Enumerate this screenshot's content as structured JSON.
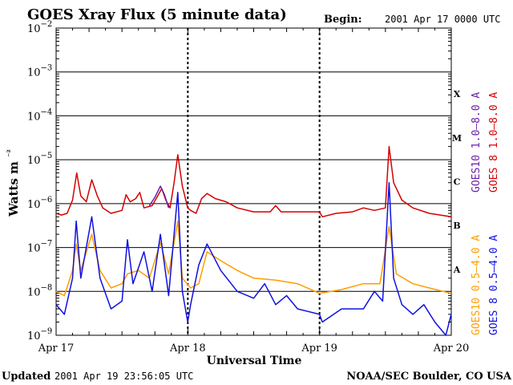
{
  "header": {
    "title": "GOES Xray Flux (5 minute data)",
    "begin_label": "Begin:",
    "begin_value": "2001 Apr 17 0000 UTC"
  },
  "footer": {
    "updated_label": "Updated",
    "updated_value": "2001 Apr 19 23:56:05 UTC",
    "credit": "NOAA/SEC Boulder, CO USA"
  },
  "colors": {
    "goes8_long": "#d40000",
    "goes10_long": "#6a1fa8",
    "goes8_short": "#1010e0",
    "goes10_short": "#ff9e00"
  },
  "chart_data": {
    "type": "line",
    "title": "GOES Xray Flux (5 minute data)",
    "xlabel": "Universal Time",
    "ylabel": "Watts m⁻²",
    "y_scale": "log",
    "ylim": [
      1e-09,
      0.01
    ],
    "y_ticks": [
      {
        "value": 1e-09,
        "base": "10",
        "exp": "−9"
      },
      {
        "value": 1e-08,
        "base": "10",
        "exp": "−8"
      },
      {
        "value": 1e-07,
        "base": "10",
        "exp": "−7"
      },
      {
        "value": 1e-06,
        "base": "10",
        "exp": "−6"
      },
      {
        "value": 1e-05,
        "base": "10",
        "exp": "−5"
      },
      {
        "value": 0.0001,
        "base": "10",
        "exp": "−4"
      },
      {
        "value": 0.001,
        "base": "10",
        "exp": "−3"
      },
      {
        "value": 0.01,
        "base": "10",
        "exp": "−2"
      }
    ],
    "xlim": [
      "2001-04-17T00:00",
      "2001-04-20T00:00"
    ],
    "x_ticks": [
      {
        "value": "2001-04-17T00:00",
        "label": "Apr 17"
      },
      {
        "value": "2001-04-18T00:00",
        "label": "Apr 18"
      },
      {
        "value": "2001-04-19T00:00",
        "label": "Apr 19"
      },
      {
        "value": "2001-04-20T00:00",
        "label": "Apr 20"
      }
    ],
    "grid": true,
    "flare_classes": [
      {
        "label": "A",
        "range": [
          1e-08,
          1e-07
        ]
      },
      {
        "label": "B",
        "range": [
          1e-07,
          1e-06
        ]
      },
      {
        "label": "C",
        "range": [
          1e-06,
          1e-05
        ]
      },
      {
        "label": "M",
        "range": [
          1e-05,
          0.0001
        ]
      },
      {
        "label": "X",
        "range": [
          0.0001,
          0.001
        ]
      }
    ],
    "series": [
      {
        "name": "GOES 8 1.0–8.0 A",
        "color": "#d40000",
        "points": [
          [
            "2001-04-17T00:00",
            6e-07
          ],
          [
            "2001-04-17T01:00",
            5.5e-07
          ],
          [
            "2001-04-17T02:00",
            6e-07
          ],
          [
            "2001-04-17T03:00",
            1.2e-06
          ],
          [
            "2001-04-17T03:45",
            5e-06
          ],
          [
            "2001-04-17T04:30",
            1.5e-06
          ],
          [
            "2001-04-17T05:30",
            1.1e-06
          ],
          [
            "2001-04-17T06:30",
            3.5e-06
          ],
          [
            "2001-04-17T07:30",
            1.5e-06
          ],
          [
            "2001-04-17T08:30",
            8e-07
          ],
          [
            "2001-04-17T10:00",
            6e-07
          ],
          [
            "2001-04-17T12:00",
            7e-07
          ],
          [
            "2001-04-17T12:45",
            1.6e-06
          ],
          [
            "2001-04-17T13:30",
            1.1e-06
          ],
          [
            "2001-04-17T14:30",
            1.3e-06
          ],
          [
            "2001-04-17T15:15",
            1.8e-06
          ],
          [
            "2001-04-17T16:00",
            8e-07
          ],
          [
            "2001-04-17T17:30",
            9e-07
          ],
          [
            "2001-04-17T18:30",
            1.5e-06
          ],
          [
            "2001-04-17T19:15",
            2.2e-06
          ],
          [
            "2001-04-17T20:00",
            1.2e-06
          ],
          [
            "2001-04-17T20:45",
            8e-07
          ],
          [
            "2001-04-17T21:30",
            3e-06
          ],
          [
            "2001-04-17T22:10",
            1.3e-05
          ],
          [
            "2001-04-17T23:00",
            2.5e-06
          ],
          [
            "2001-04-17T23:59",
            8e-07
          ],
          [
            "2001-04-18T00:30",
            7e-07
          ],
          [
            "2001-04-18T01:30",
            6e-07
          ],
          [
            "2001-04-18T02:30",
            1.3e-06
          ],
          [
            "2001-04-18T03:30",
            1.7e-06
          ],
          [
            "2001-04-18T05:00",
            1.3e-06
          ],
          [
            "2001-04-18T07:00",
            1.1e-06
          ],
          [
            "2001-04-18T09:00",
            8e-07
          ],
          [
            "2001-04-18T12:00",
            6.5e-07
          ],
          [
            "2001-04-18T15:00",
            6.5e-07
          ],
          [
            "2001-04-18T16:00",
            9e-07
          ],
          [
            "2001-04-18T17:00",
            6.5e-07
          ],
          [
            "2001-04-18T20:00",
            6.5e-07
          ],
          [
            "2001-04-18T23:59",
            6.5e-07
          ],
          [
            "2001-04-19T00:30",
            5e-07
          ],
          [
            "2001-04-19T03:00",
            6e-07
          ],
          [
            "2001-04-19T06:00",
            6.5e-07
          ],
          [
            "2001-04-19T08:00",
            8e-07
          ],
          [
            "2001-04-19T10:00",
            7e-07
          ],
          [
            "2001-04-19T12:00",
            8e-07
          ],
          [
            "2001-04-19T12:40",
            2e-05
          ],
          [
            "2001-04-19T13:30",
            3e-06
          ],
          [
            "2001-04-19T15:00",
            1.2e-06
          ],
          [
            "2001-04-19T17:00",
            8e-07
          ],
          [
            "2001-04-19T20:00",
            6e-07
          ],
          [
            "2001-04-19T22:00",
            5.5e-07
          ],
          [
            "2001-04-19T23:59",
            5e-07
          ]
        ]
      },
      {
        "name": "GOES10 1.0–8.0 A",
        "color": "#6a1fa8",
        "points": [
          [
            "2001-04-17T17:00",
            9e-07
          ],
          [
            "2001-04-17T18:00",
            1.4e-06
          ],
          [
            "2001-04-17T19:00",
            2.5e-06
          ],
          [
            "2001-04-17T19:45",
            1.6e-06
          ],
          [
            "2001-04-17T20:30",
            8e-07
          ]
        ]
      },
      {
        "name": "GOES10 0.5–4.0 A",
        "color": "#ff9e00",
        "points": [
          [
            "2001-04-17T00:00",
            1e-08
          ],
          [
            "2001-04-17T01:30",
            8e-09
          ],
          [
            "2001-04-17T03:00",
            3e-08
          ],
          [
            "2001-04-17T03:40",
            1.2e-07
          ],
          [
            "2001-04-17T04:30",
            3e-08
          ],
          [
            "2001-04-17T06:30",
            2e-07
          ],
          [
            "2001-04-17T08:00",
            3e-08
          ],
          [
            "2001-04-17T10:00",
            1.2e-08
          ],
          [
            "2001-04-17T12:00",
            1.5e-08
          ],
          [
            "2001-04-17T13:00",
            2.5e-08
          ],
          [
            "2001-04-17T15:00",
            3e-08
          ],
          [
            "2001-04-17T17:00",
            2e-08
          ],
          [
            "2001-04-17T19:00",
            1.3e-07
          ],
          [
            "2001-04-17T20:30",
            2.5e-08
          ],
          [
            "2001-04-17T22:10",
            4e-07
          ],
          [
            "2001-04-17T23:00",
            2e-08
          ],
          [
            "2001-04-18T00:30",
            1.2e-08
          ],
          [
            "2001-04-18T02:00",
            1.5e-08
          ],
          [
            "2001-04-18T03:30",
            8e-08
          ],
          [
            "2001-04-18T06:00",
            5e-08
          ],
          [
            "2001-04-18T09:00",
            3e-08
          ],
          [
            "2001-04-18T12:00",
            2e-08
          ],
          [
            "2001-04-18T16:00",
            1.8e-08
          ],
          [
            "2001-04-18T20:00",
            1.5e-08
          ],
          [
            "2001-04-19T00:00",
            9e-09
          ],
          [
            "2001-04-19T04:00",
            1.1e-08
          ],
          [
            "2001-04-19T08:00",
            1.5e-08
          ],
          [
            "2001-04-19T11:00",
            1.5e-08
          ],
          [
            "2001-04-19T12:40",
            3e-07
          ],
          [
            "2001-04-19T14:00",
            2.5e-08
          ],
          [
            "2001-04-19T17:00",
            1.5e-08
          ],
          [
            "2001-04-19T20:00",
            1.2e-08
          ],
          [
            "2001-04-19T23:59",
            9e-09
          ]
        ]
      },
      {
        "name": "GOES 8 0.5–4.0 A",
        "color": "#1010e0",
        "points": [
          [
            "2001-04-17T00:00",
            5e-09
          ],
          [
            "2001-04-17T01:30",
            3e-09
          ],
          [
            "2001-04-17T03:00",
            2e-08
          ],
          [
            "2001-04-17T03:40",
            4e-07
          ],
          [
            "2001-04-17T04:30",
            2e-08
          ],
          [
            "2001-04-17T06:30",
            5e-07
          ],
          [
            "2001-04-17T08:00",
            2e-08
          ],
          [
            "2001-04-17T10:00",
            4e-09
          ],
          [
            "2001-04-17T12:00",
            6e-09
          ],
          [
            "2001-04-17T13:00",
            1.5e-07
          ],
          [
            "2001-04-17T14:00",
            1.5e-08
          ],
          [
            "2001-04-17T16:00",
            8e-08
          ],
          [
            "2001-04-17T17:30",
            1e-08
          ],
          [
            "2001-04-17T19:00",
            2e-07
          ],
          [
            "2001-04-17T20:30",
            8e-09
          ],
          [
            "2001-04-17T22:10",
            1.8e-06
          ],
          [
            "2001-04-17T23:00",
            1e-08
          ],
          [
            "2001-04-17T23:59",
            2e-09
          ],
          [
            "2001-04-18T00:30",
            5e-09
          ],
          [
            "2001-04-18T02:00",
            4e-08
          ],
          [
            "2001-04-18T03:30",
            1.2e-07
          ],
          [
            "2001-04-18T06:00",
            3e-08
          ],
          [
            "2001-04-18T09:00",
            1e-08
          ],
          [
            "2001-04-18T12:00",
            7e-09
          ],
          [
            "2001-04-18T14:00",
            1.5e-08
          ],
          [
            "2001-04-18T16:00",
            5e-09
          ],
          [
            "2001-04-18T18:00",
            8e-09
          ],
          [
            "2001-04-18T20:00",
            4e-09
          ],
          [
            "2001-04-18T23:59",
            3e-09
          ],
          [
            "2001-04-19T00:30",
            2e-09
          ],
          [
            "2001-04-19T04:00",
            4e-09
          ],
          [
            "2001-04-19T08:00",
            4e-09
          ],
          [
            "2001-04-19T10:00",
            1e-08
          ],
          [
            "2001-04-19T11:30",
            6e-09
          ],
          [
            "2001-04-19T12:40",
            3e-06
          ],
          [
            "2001-04-19T13:30",
            2e-08
          ],
          [
            "2001-04-19T15:00",
            5e-09
          ],
          [
            "2001-04-19T17:00",
            3e-09
          ],
          [
            "2001-04-19T19:00",
            5e-09
          ],
          [
            "2001-04-19T21:00",
            2e-09
          ],
          [
            "2001-04-19T23:00",
            1e-09
          ],
          [
            "2001-04-19T23:59",
            3e-09
          ]
        ]
      }
    ]
  }
}
